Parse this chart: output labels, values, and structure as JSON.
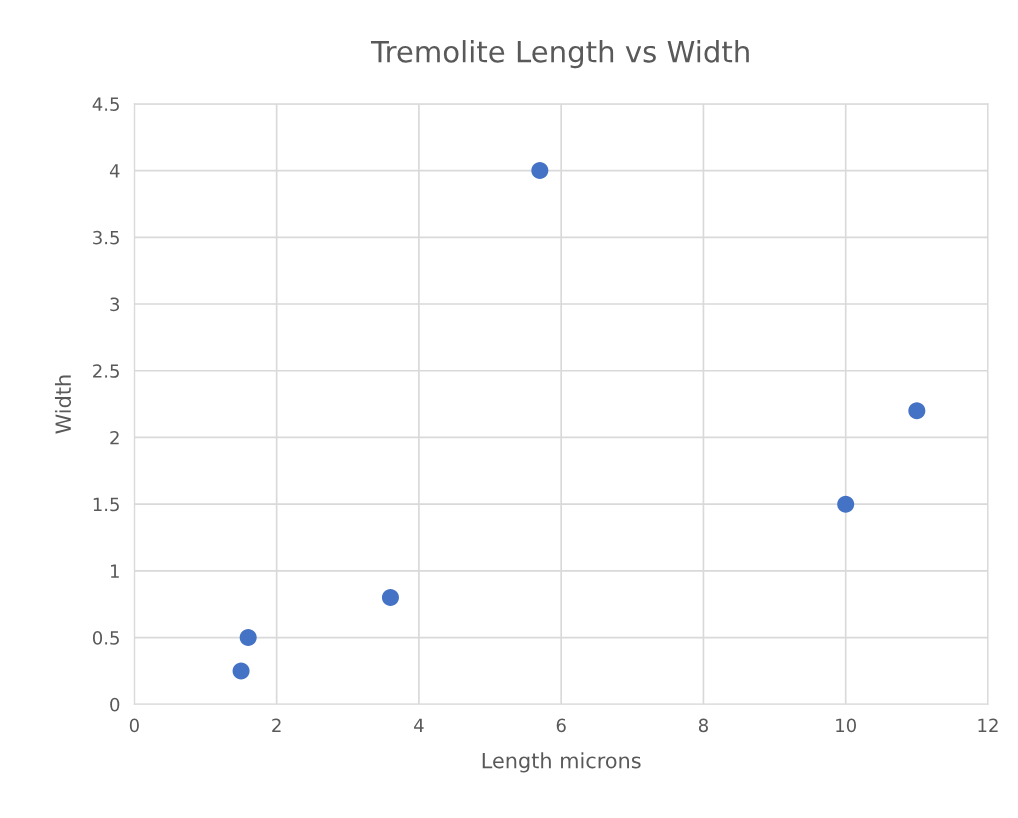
{
  "chart_data": {
    "type": "scatter",
    "title": "Tremolite Length vs Width",
    "xlabel": "Length microns",
    "ylabel": "Width",
    "x": [
      1.5,
      1.6,
      3.6,
      5.7,
      10,
      11
    ],
    "series": [
      {
        "color": "#4472c4",
        "values": [
          0.25,
          0.5,
          0.8,
          4,
          1.5,
          2.2
        ]
      }
    ],
    "xlim": [
      0,
      12
    ],
    "xticks": [
      0,
      2,
      4,
      6,
      8,
      10,
      12
    ],
    "ylim": [
      0,
      4.5
    ],
    "yticks": [
      0,
      0.5,
      1,
      1.5,
      2,
      2.5,
      3,
      3.5,
      4,
      4.5
    ],
    "grid": true,
    "marker": "circle",
    "legend": false
  }
}
